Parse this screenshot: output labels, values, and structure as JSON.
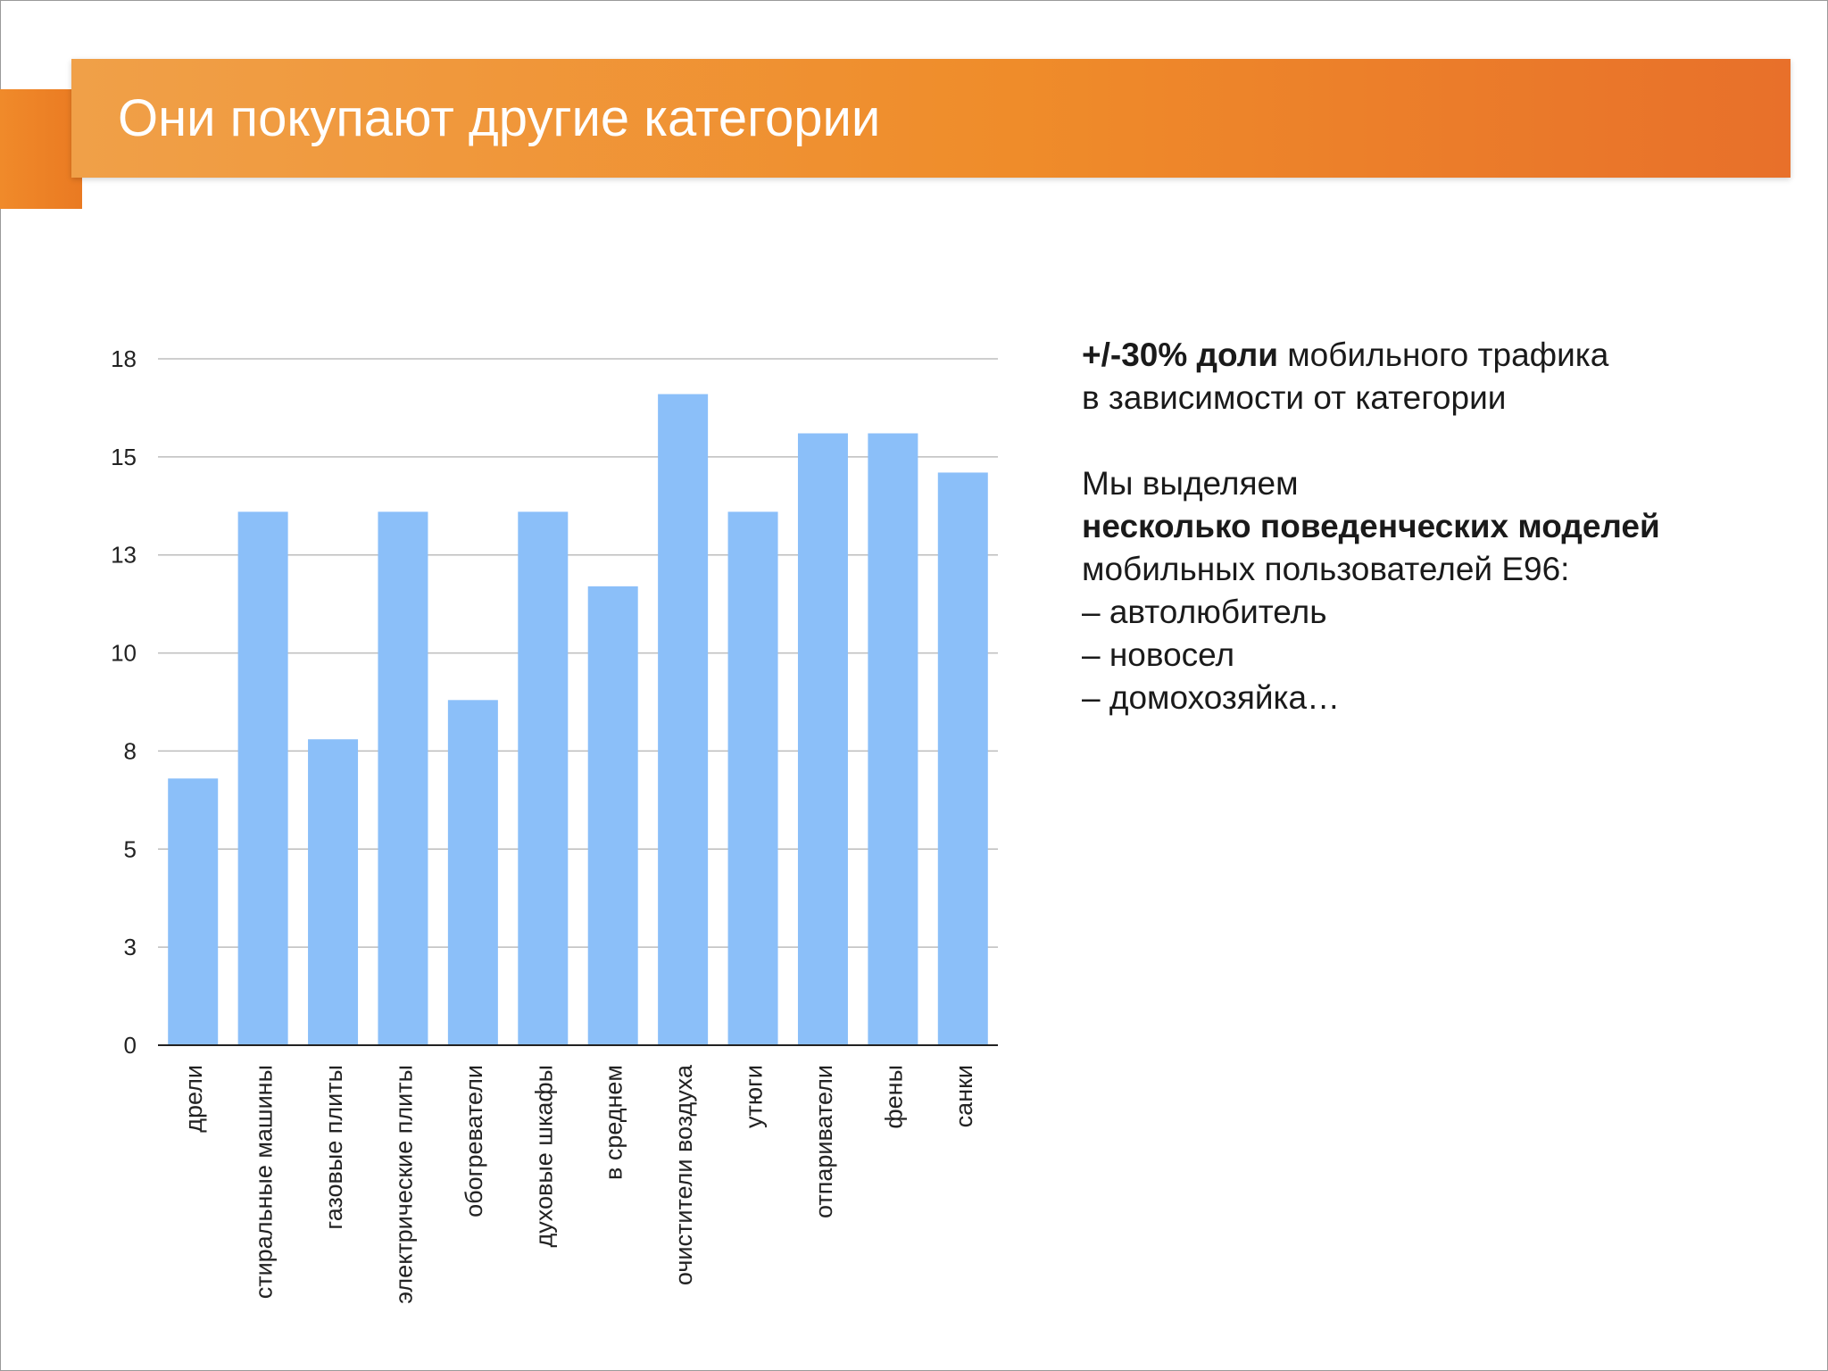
{
  "slide": {
    "title": "Они покупают другие категории"
  },
  "side_text": {
    "p1_bold": "+/-30% доли",
    "p1_rest": " мобильного трафика",
    "p1_line2": "в зависимости от категории",
    "p2_line1": "Мы выделяем",
    "p2_bold": "несколько поведенческих моделей",
    "p2_line3": "мобильных пользователей E96:",
    "list": [
      "– автолюбитель",
      "– новосел",
      "– домохозяйка…"
    ]
  },
  "colors": {
    "bar": "#8bbff9",
    "grid": "#bdbdbd",
    "axis": "#222222",
    "header_orange": "#ef8c2a"
  },
  "chart_data": {
    "type": "bar",
    "title": "",
    "xlabel": "",
    "ylabel": "",
    "categories": [
      "дрели",
      "стиральные машины",
      "газовые плиты",
      "электрические плиты",
      "обогреватели",
      "духовые шкафы",
      "в среднем",
      "очистители воздуха",
      "утюги",
      "отпариватели",
      "фены",
      "санки"
    ],
    "values": [
      6.8,
      13.6,
      7.8,
      13.6,
      8.8,
      13.6,
      11.7,
      16.6,
      13.6,
      15.6,
      15.6,
      14.6
    ],
    "yticks": [
      "0",
      "3",
      "5",
      "8",
      "10",
      "13",
      "15",
      "18"
    ],
    "ylim": [
      0,
      17.5
    ],
    "grid": true,
    "legend": "none"
  }
}
